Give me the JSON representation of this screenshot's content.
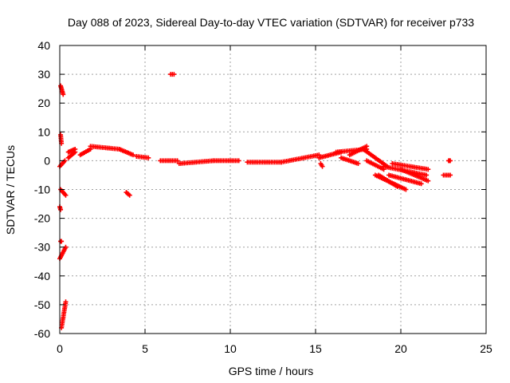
{
  "chart_data": {
    "type": "scatter",
    "title": "Day 088 of 2023, Sidereal Day-to-day VTEC variation (SDTVAR) for receiver p733",
    "xlabel": "GPS time / hours",
    "ylabel": "SDTVAR / TECUs",
    "xlim": [
      0,
      25
    ],
    "ylim": [
      -60,
      40
    ],
    "xticks": [
      0,
      5,
      10,
      15,
      20,
      25
    ],
    "xtick_labels": [
      "0",
      "5",
      "10",
      "15",
      "20",
      "25"
    ],
    "yticks": [
      40,
      30,
      20,
      10,
      0,
      -10,
      -20,
      -30,
      -40,
      -50,
      -60
    ],
    "ytick_labels": [
      "40",
      "30",
      "20",
      "10",
      "0",
      "-10",
      "-20",
      "-30",
      "-40",
      "-50",
      "-60"
    ],
    "grid": true,
    "marker": "+",
    "marker_color": "#ff0000",
    "series": [
      {
        "name": "SDTVAR",
        "segments": [
          {
            "x0": 0.05,
            "x1": 0.2,
            "y0": 26,
            "y1": 23
          },
          {
            "x0": 0.05,
            "x1": 0.1,
            "y0": 9,
            "y1": 6
          },
          {
            "x0": 0.0,
            "x1": 0.3,
            "y0": -2,
            "y1": 0
          },
          {
            "x0": 0.05,
            "x1": 0.35,
            "y0": -10,
            "y1": -12
          },
          {
            "x0": 0.0,
            "x1": 0.05,
            "y0": -16,
            "y1": -17
          },
          {
            "x0": 0.05,
            "x1": 0.1,
            "y0": -28,
            "y1": -28
          },
          {
            "x0": 0.0,
            "x1": 0.35,
            "y0": -34,
            "y1": -30
          },
          {
            "x0": 0.1,
            "x1": 0.35,
            "y0": -58,
            "y1": -49
          },
          {
            "x0": 0.5,
            "x1": 0.9,
            "y0": 1,
            "y1": 3
          },
          {
            "x0": 0.5,
            "x1": 0.9,
            "y0": 3,
            "y1": 4
          },
          {
            "x0": 1.2,
            "x1": 1.8,
            "y0": 2,
            "y1": 4
          },
          {
            "x0": 1.8,
            "x1": 3.5,
            "y0": 5,
            "y1": 4
          },
          {
            "x0": 3.5,
            "x1": 4.3,
            "y0": 4,
            "y1": 2
          },
          {
            "x0": 4.5,
            "x1": 5.2,
            "y0": 1.5,
            "y1": 1
          },
          {
            "x0": 3.9,
            "x1": 4.1,
            "y0": -11,
            "y1": -12
          },
          {
            "x0": 6.5,
            "x1": 6.7,
            "y0": 30,
            "y1": 30
          },
          {
            "x0": 5.9,
            "x1": 6.9,
            "y0": 0,
            "y1": 0
          },
          {
            "x0": 7.0,
            "x1": 9.0,
            "y0": -1,
            "y1": 0
          },
          {
            "x0": 9.0,
            "x1": 10.5,
            "y0": 0,
            "y1": 0
          },
          {
            "x0": 11.0,
            "x1": 13.0,
            "y0": -0.5,
            "y1": -0.5
          },
          {
            "x0": 13.0,
            "x1": 15.2,
            "y0": -0.5,
            "y1": 2
          },
          {
            "x0": 15.2,
            "x1": 16.5,
            "y0": 1,
            "y1": 3
          },
          {
            "x0": 15.3,
            "x1": 15.4,
            "y0": -1,
            "y1": -2
          },
          {
            "x0": 16.2,
            "x1": 18.0,
            "y0": 3,
            "y1": 4
          },
          {
            "x0": 16.5,
            "x1": 17.5,
            "y0": 1,
            "y1": -1
          },
          {
            "x0": 17.0,
            "x1": 18.0,
            "y0": 2,
            "y1": 5
          },
          {
            "x0": 17.8,
            "x1": 19.2,
            "y0": 4,
            "y1": -2
          },
          {
            "x0": 18.0,
            "x1": 19.0,
            "y0": 0,
            "y1": -3
          },
          {
            "x0": 18.5,
            "x1": 20.3,
            "y0": -5,
            "y1": -10
          },
          {
            "x0": 18.7,
            "x1": 19.8,
            "y0": -5,
            "y1": -9
          },
          {
            "x0": 19.0,
            "x1": 21.5,
            "y0": -2,
            "y1": -5
          },
          {
            "x0": 19.3,
            "x1": 21.2,
            "y0": -5,
            "y1": -8
          },
          {
            "x0": 19.5,
            "x1": 21.6,
            "y0": -1,
            "y1": -3
          },
          {
            "x0": 20.0,
            "x1": 21.6,
            "y0": -3,
            "y1": -7
          },
          {
            "x0": 22.5,
            "x1": 22.9,
            "y0": -5,
            "y1": -5
          },
          {
            "x0": 22.8,
            "x1": 22.9,
            "y0": 0,
            "y1": 0
          }
        ]
      }
    ]
  }
}
